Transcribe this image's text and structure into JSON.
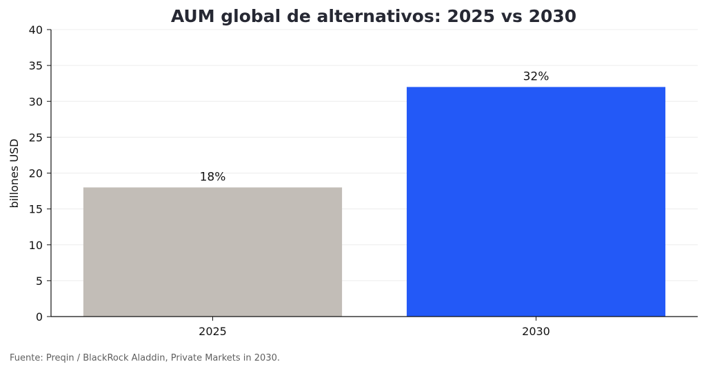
{
  "chart_data": {
    "type": "bar",
    "title": "AUM global de alternativos: 2025 vs 2030",
    "xlabel": "",
    "ylabel": "billones USD",
    "categories": [
      "2025",
      "2030"
    ],
    "values": [
      18,
      32
    ],
    "data_labels": [
      "18%",
      "32%"
    ],
    "bar_colors": [
      "#c2bdb7",
      "#2359f7"
    ],
    "ylim": [
      0,
      40
    ],
    "yticks": [
      0,
      5,
      10,
      15,
      20,
      25,
      30,
      35,
      40
    ],
    "grid": true,
    "legend": "none"
  },
  "footer": {
    "source": "Fuente: Preqin / BlackRock Aladdin, Private Markets in 2030."
  }
}
